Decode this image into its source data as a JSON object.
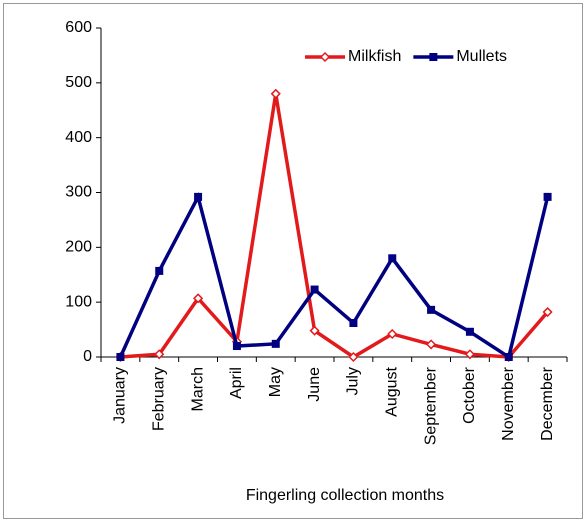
{
  "chart_data": {
    "type": "line",
    "x_label": "Fingerling collection months",
    "categories": [
      "January",
      "February",
      "March",
      "April",
      "May",
      "June",
      "July",
      "August",
      "September",
      "October",
      "November",
      "December"
    ],
    "series": [
      {
        "name": "Milkfish",
        "color": "#e31a1c",
        "marker": "diamond",
        "values": [
          0,
          5,
          107,
          28,
          480,
          48,
          0,
          42,
          23,
          5,
          0,
          82
        ]
      },
      {
        "name": "Mullets",
        "color": "#000080",
        "marker": "square",
        "values": [
          0,
          157,
          292,
          20,
          24,
          123,
          62,
          180,
          86,
          46,
          0,
          292
        ]
      }
    ],
    "ylim": [
      0,
      600
    ],
    "yticks": [
      0,
      100,
      200,
      300,
      400,
      500,
      600
    ],
    "grid": false,
    "legend": "upper right"
  }
}
